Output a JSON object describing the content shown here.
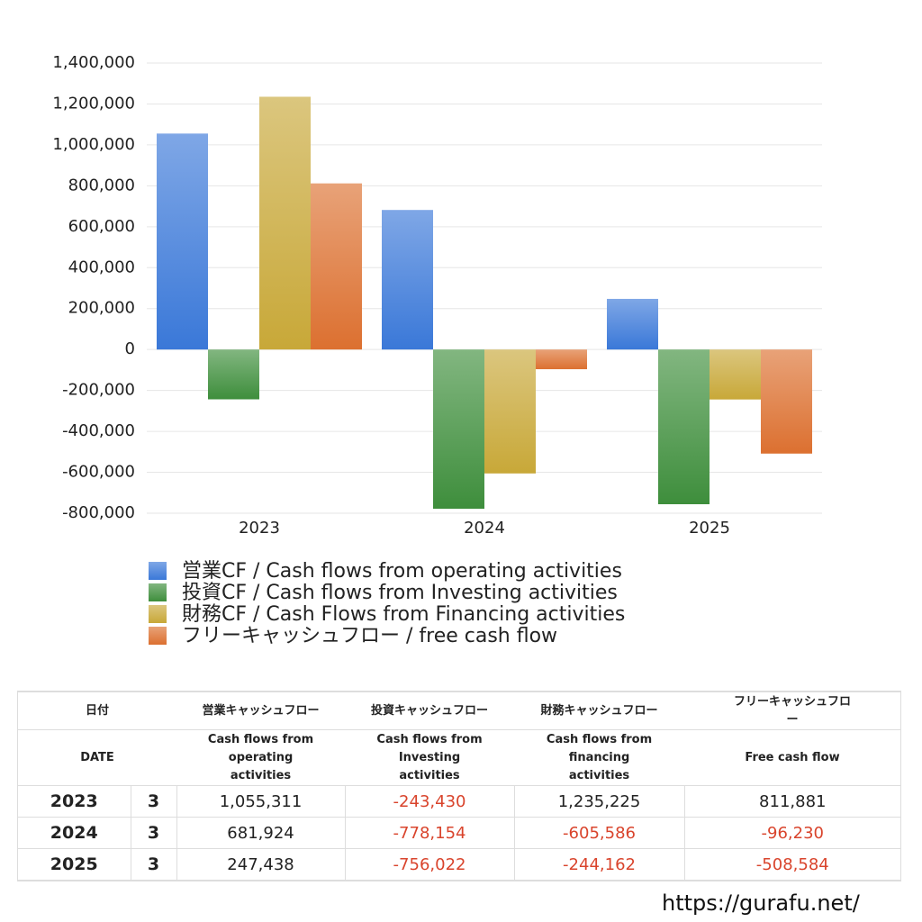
{
  "chart_data": {
    "type": "bar",
    "categories": [
      "2023",
      "2024",
      "2025"
    ],
    "series": [
      {
        "name": "営業CF / Cash flows from operating activities",
        "color": "#3a78d8",
        "values": [
          1055311,
          681924,
          247438
        ]
      },
      {
        "name": "投資CF / Cash flows from Investing activities",
        "color": "#3e8e3c",
        "values": [
          -243430,
          -778154,
          -756022
        ]
      },
      {
        "name": "財務CF / Cash Flows from Financing activities",
        "color": "#c8a838",
        "values": [
          1235225,
          -605586,
          -244162
        ]
      },
      {
        "name": "フリーキャッシュフロー / free cash flow",
        "color": "#dc7030",
        "values": [
          811881,
          -96230,
          -508584
        ]
      }
    ],
    "ylim": [
      -800000,
      1400000
    ],
    "yticks": [
      {
        "value": -800000,
        "label": "-800,000"
      },
      {
        "value": -600000,
        "label": "-600,000"
      },
      {
        "value": -400000,
        "label": "-400,000"
      },
      {
        "value": -200000,
        "label": "-200,000"
      },
      0,
      {
        "value": 200000,
        "label": "200,000"
      },
      {
        "value": 400000,
        "label": "400,000"
      },
      {
        "value": 600000,
        "label": "600,000"
      },
      {
        "value": 800000,
        "label": "800,000"
      },
      {
        "value": 1000000,
        "label": "1,000,000"
      },
      {
        "value": 1200000,
        "label": "1,200,000"
      },
      {
        "value": 1400000,
        "label": "1,400,000"
      }
    ],
    "grid": true,
    "legend": "bottom"
  },
  "table": {
    "header": [
      [
        "日付",
        "営業キャッシュフロー",
        "投資キャッシュフロー",
        "財務キャッシュフロー",
        "フリーキャッシュフロー"
      ],
      [
        "DATE",
        "Cash flows from operating activities",
        "Cash flows from Investing activities",
        "Cash flows from financing activities",
        "Free cash flow"
      ]
    ],
    "rows": [
      [
        "2023",
        "3",
        "1,055,311",
        "-243,430",
        "1,235,225",
        "811,881"
      ],
      [
        "2024",
        "3",
        "681,924",
        "-778,154",
        "-605,586",
        "-96,230"
      ],
      [
        "2025",
        "3",
        "247,438",
        "-756,022",
        "-244,162",
        "-508,584"
      ]
    ]
  },
  "source": "https://gurafu.net/"
}
